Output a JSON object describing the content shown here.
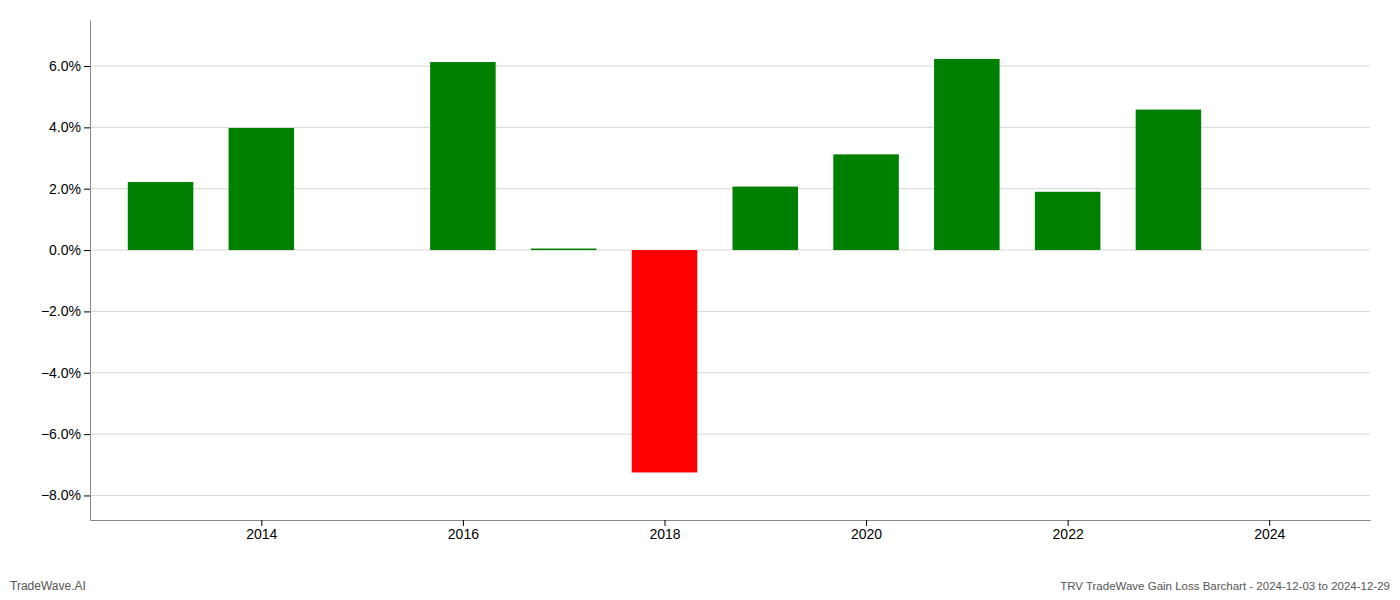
{
  "chart_data": {
    "type": "bar",
    "title": "TRV TradeWave Gain Loss Barchart - 2024-12-03 to 2024-12-29",
    "annotations": [
      "TradeWave.AI"
    ],
    "x": [
      2013,
      2014,
      2016,
      2017,
      2018,
      2019,
      2020,
      2021,
      2022,
      2023
    ],
    "values": [
      0.0222,
      0.0398,
      0.0613,
      0.0005,
      -0.0725,
      0.0207,
      0.0312,
      0.0623,
      0.019,
      0.0458
    ],
    "colors": [
      "#008000",
      "#008000",
      "#008000",
      "#008000",
      "#ff0000",
      "#008000",
      "#008000",
      "#008000",
      "#008000",
      "#008000"
    ],
    "xlim": [
      2012.3,
      2025.0
    ],
    "xticks": [
      2014,
      2016,
      2018,
      2020,
      2022,
      2024
    ],
    "ylim": [
      -0.088,
      0.075
    ],
    "yticks": [
      {
        "value": -0.08,
        "label": "−8.0%"
      },
      {
        "value": -0.06,
        "label": "−6.0%"
      },
      {
        "value": -0.04,
        "label": "−4.0%"
      },
      {
        "value": -0.02,
        "label": "−2.0%"
      },
      {
        "value": 0.0,
        "label": "0.0%"
      },
      {
        "value": 0.02,
        "label": "2.0%"
      },
      {
        "value": 0.04,
        "label": "4.0%"
      },
      {
        "value": 0.06,
        "label": "6.0%"
      }
    ],
    "grid": true
  }
}
